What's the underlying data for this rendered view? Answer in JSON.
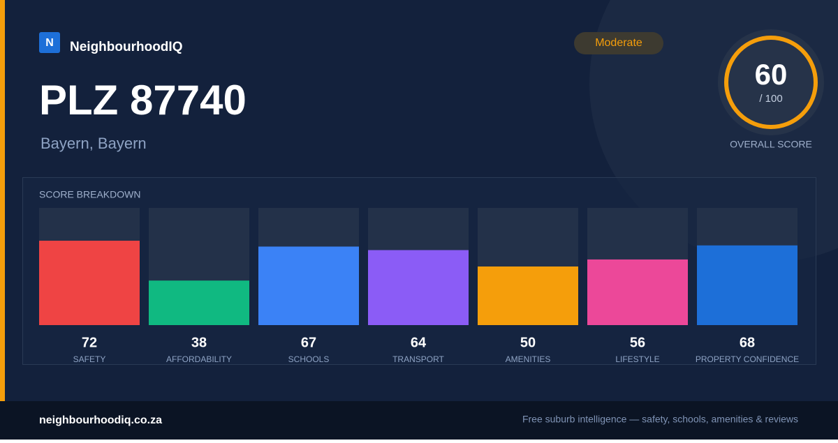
{
  "brand": {
    "logo": "N",
    "name": "NeighbourhoodIQ"
  },
  "badge": "Moderate",
  "title": "PLZ 87740",
  "subtitle": "Bayern, Bayern",
  "overall": {
    "score": 60,
    "max_label": "/ 100",
    "label": "OVERALL SCORE"
  },
  "chart_data": {
    "type": "bar",
    "title": "SCORE BREAKDOWN",
    "categories": [
      "SAFETY",
      "AFFORDABILITY",
      "SCHOOLS",
      "TRANSPORT",
      "AMENITIES",
      "LIFESTYLE",
      "PROPERTY CONFIDENCE"
    ],
    "values": [
      72,
      38,
      67,
      64,
      50,
      56,
      68
    ],
    "colors": [
      "#ef4444",
      "#10b981",
      "#3b82f6",
      "#8b5cf6",
      "#f59e0b",
      "#ec4899",
      "#1d6fd8"
    ],
    "ylim": [
      0,
      100
    ]
  },
  "footer": {
    "site": "neighbourhoodiq.co.za",
    "tagline": "Free suburb intelligence — safety, schools, amenities & reviews"
  }
}
